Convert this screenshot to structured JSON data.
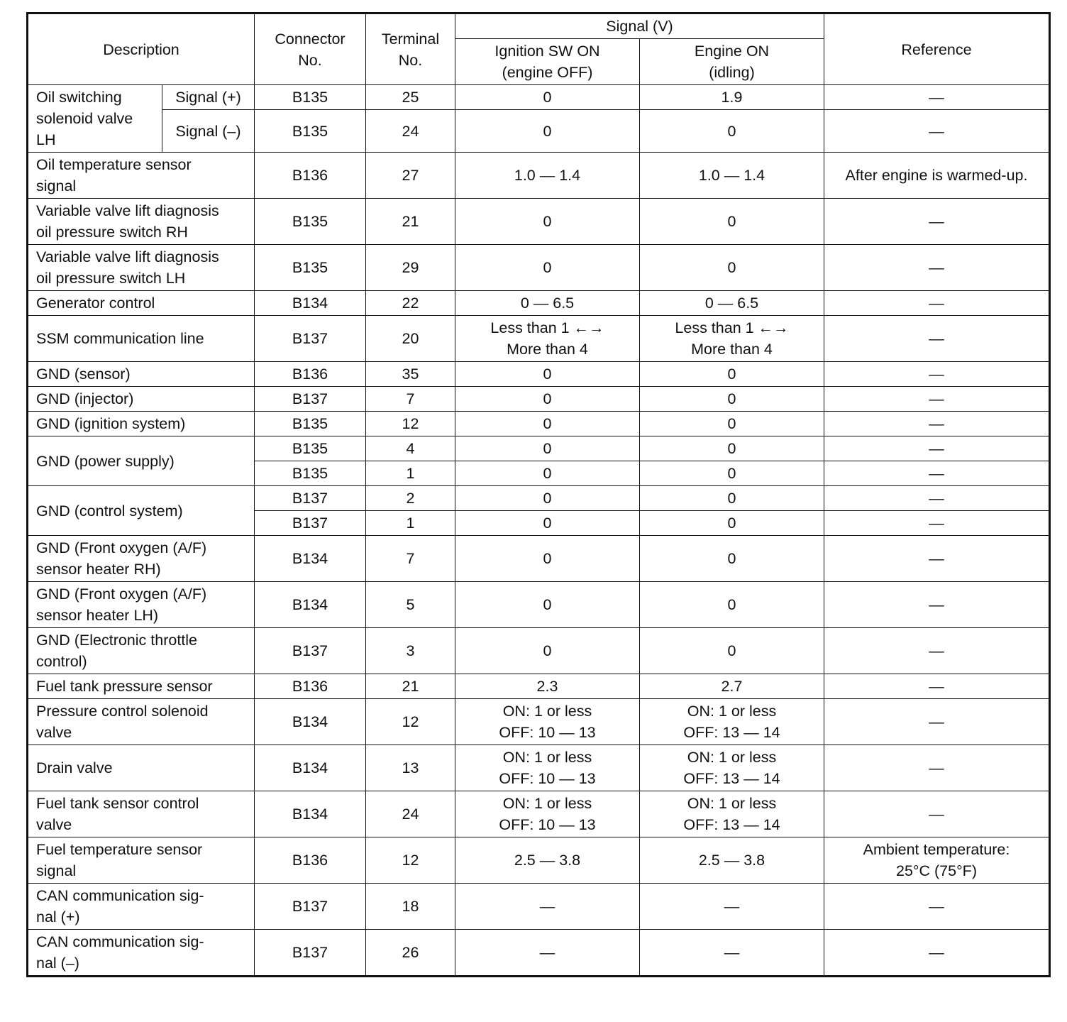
{
  "header": {
    "description": "Description",
    "connector": "Connector\nNo.",
    "terminal": "Terminal\nNo.",
    "signal": "Signal (V)",
    "ignition": "Ignition SW ON\n(engine OFF)",
    "engine": "Engine ON\n(idling)",
    "reference": "Reference"
  },
  "groups": [
    {
      "desc": "Oil switching\nsolenoid valve\nLH",
      "entries": [
        {
          "sub": "Signal (+)",
          "connector": "B135",
          "terminal": "25",
          "ign": "0",
          "eng": "1.9",
          "ref": "—"
        },
        {
          "sub": "Signal (–)",
          "connector": "B135",
          "terminal": "24",
          "ign": "0",
          "eng": "0",
          "ref": "—"
        }
      ]
    },
    {
      "desc": "Oil temperature sensor\nsignal",
      "entries": [
        {
          "connector": "B136",
          "terminal": "27",
          "ign": "1.0 — 1.4",
          "eng": "1.0 — 1.4",
          "ref": "After engine is warmed-up."
        }
      ]
    },
    {
      "desc": "Variable valve lift diagnosis\noil pressure switch RH",
      "entries": [
        {
          "connector": "B135",
          "terminal": "21",
          "ign": "0",
          "eng": "0",
          "ref": "—"
        }
      ]
    },
    {
      "desc": "Variable valve lift diagnosis\noil pressure switch LH",
      "entries": [
        {
          "connector": "B135",
          "terminal": "29",
          "ign": "0",
          "eng": "0",
          "ref": "—"
        }
      ]
    },
    {
      "desc": "Generator control",
      "entries": [
        {
          "connector": "B134",
          "terminal": "22",
          "ign": "0 — 6.5",
          "eng": "0 — 6.5",
          "ref": "—"
        }
      ]
    },
    {
      "desc": "SSM communication line",
      "entries": [
        {
          "connector": "B137",
          "terminal": "20",
          "ign": "Less than 1 ←→\nMore than 4",
          "eng": "Less than 1 ←→\nMore than 4",
          "ref": "—"
        }
      ]
    },
    {
      "desc": "GND (sensor)",
      "entries": [
        {
          "connector": "B136",
          "terminal": "35",
          "ign": "0",
          "eng": "0",
          "ref": "—"
        }
      ]
    },
    {
      "desc": "GND (injector)",
      "entries": [
        {
          "connector": "B137",
          "terminal": "7",
          "ign": "0",
          "eng": "0",
          "ref": "—"
        }
      ]
    },
    {
      "desc": "GND (ignition system)",
      "entries": [
        {
          "connector": "B135",
          "terminal": "12",
          "ign": "0",
          "eng": "0",
          "ref": "—"
        }
      ]
    },
    {
      "desc": "GND (power supply)",
      "entries": [
        {
          "connector": "B135",
          "terminal": "4",
          "ign": "0",
          "eng": "0",
          "ref": "—"
        },
        {
          "connector": "B135",
          "terminal": "1",
          "ign": "0",
          "eng": "0",
          "ref": "—"
        }
      ]
    },
    {
      "desc": "GND (control system)",
      "entries": [
        {
          "connector": "B137",
          "terminal": "2",
          "ign": "0",
          "eng": "0",
          "ref": "—"
        },
        {
          "connector": "B137",
          "terminal": "1",
          "ign": "0",
          "eng": "0",
          "ref": "—"
        }
      ]
    },
    {
      "desc": "GND (Front oxygen (A/F)\nsensor heater RH)",
      "entries": [
        {
          "connector": "B134",
          "terminal": "7",
          "ign": "0",
          "eng": "0",
          "ref": "—"
        }
      ]
    },
    {
      "desc": "GND (Front oxygen (A/F)\nsensor heater LH)",
      "entries": [
        {
          "connector": "B134",
          "terminal": "5",
          "ign": "0",
          "eng": "0",
          "ref": "—"
        }
      ]
    },
    {
      "desc": "GND (Electronic throttle\ncontrol)",
      "entries": [
        {
          "connector": "B137",
          "terminal": "3",
          "ign": "0",
          "eng": "0",
          "ref": "—"
        }
      ]
    },
    {
      "desc": "Fuel tank pressure sensor",
      "entries": [
        {
          "connector": "B136",
          "terminal": "21",
          "ign": "2.3",
          "eng": "2.7",
          "ref": "—"
        }
      ]
    },
    {
      "desc": "Pressure control solenoid\nvalve",
      "entries": [
        {
          "connector": "B134",
          "terminal": "12",
          "ign": "ON: 1 or less\nOFF: 10 — 13",
          "eng": "ON: 1 or less\nOFF: 13 — 14",
          "ref": "—"
        }
      ]
    },
    {
      "desc": "Drain valve",
      "entries": [
        {
          "connector": "B134",
          "terminal": "13",
          "ign": "ON: 1 or less\nOFF: 10 — 13",
          "eng": "ON: 1 or less\nOFF: 13 — 14",
          "ref": "—"
        }
      ]
    },
    {
      "desc": "Fuel tank sensor control\nvalve",
      "entries": [
        {
          "connector": "B134",
          "terminal": "24",
          "ign": "ON: 1 or less\nOFF: 10 — 13",
          "eng": "ON: 1 or less\nOFF: 13 — 14",
          "ref": "—"
        }
      ]
    },
    {
      "desc": "Fuel temperature sensor\nsignal",
      "entries": [
        {
          "connector": "B136",
          "terminal": "12",
          "ign": "2.5 — 3.8",
          "eng": "2.5 — 3.8",
          "ref": "Ambient temperature:\n25°C (75°F)"
        }
      ]
    },
    {
      "desc": "CAN communication sig-\nnal (+)",
      "entries": [
        {
          "connector": "B137",
          "terminal": "18",
          "ign": "—",
          "eng": "—",
          "ref": "—"
        }
      ]
    },
    {
      "desc": "CAN communication sig-\nnal (–)",
      "entries": [
        {
          "connector": "B137",
          "terminal": "26",
          "ign": "—",
          "eng": "—",
          "ref": "—"
        }
      ]
    }
  ]
}
